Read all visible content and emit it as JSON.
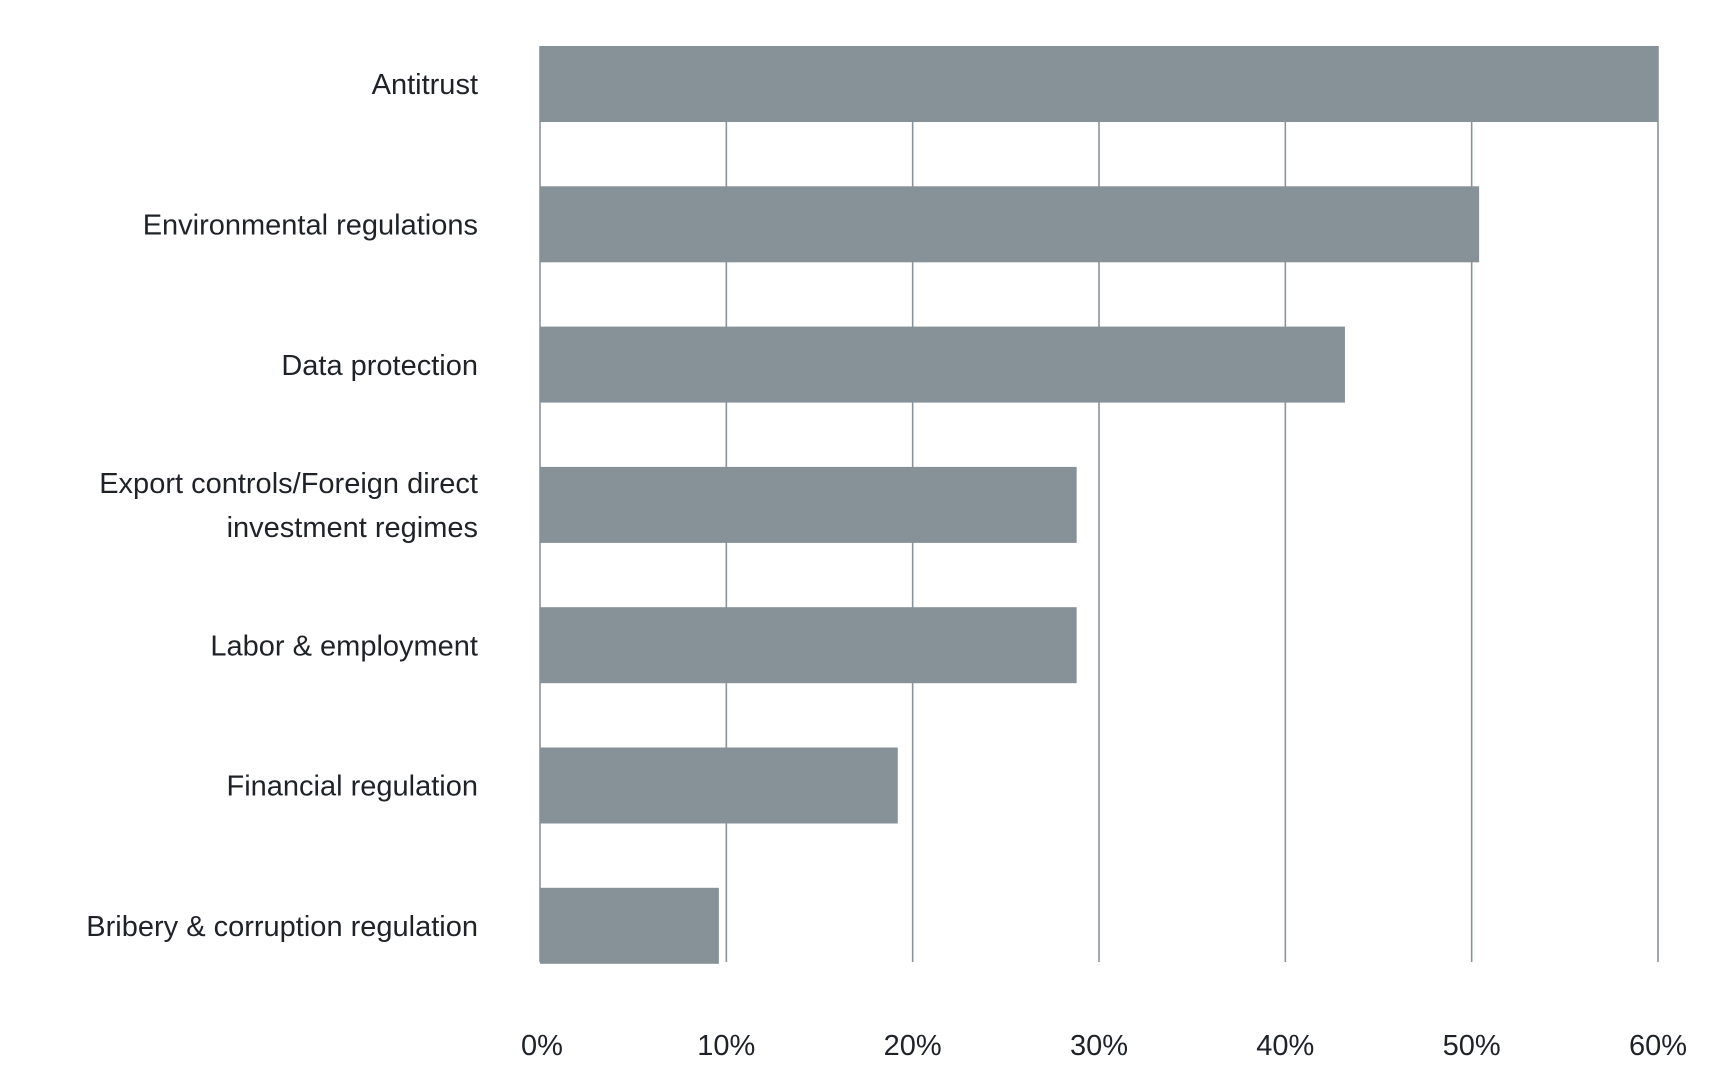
{
  "chart_data": {
    "type": "bar",
    "orientation": "horizontal",
    "categories": [
      "Antitrust",
      "Environmental regulations",
      "Data protection",
      "Export controls/Foreign direct investment regimes",
      "Labor & employment",
      "Financial regulation",
      "Bribery & corruption regulation"
    ],
    "category_label_lines": [
      [
        "Antitrust"
      ],
      [
        "Environmental regulations"
      ],
      [
        "Data protection"
      ],
      [
        "Export controls/Foreign direct",
        "investment regimes"
      ],
      [
        "Labor & employment"
      ],
      [
        "Financial regulation"
      ],
      [
        "Bribery & corruption regulation"
      ]
    ],
    "values": [
      60,
      50.4,
      43.2,
      28.8,
      28.8,
      19.2,
      9.6
    ],
    "xlim": [
      0,
      60
    ],
    "x_ticks": [
      0,
      10,
      20,
      30,
      40,
      50,
      60
    ],
    "x_tick_labels": [
      "0%",
      "10%",
      "20%",
      "30%",
      "40%",
      "50%",
      "60%"
    ],
    "grid": true,
    "bar_color": "#879298",
    "grid_color": "#8a949a",
    "text_color": "#1f2328"
  }
}
